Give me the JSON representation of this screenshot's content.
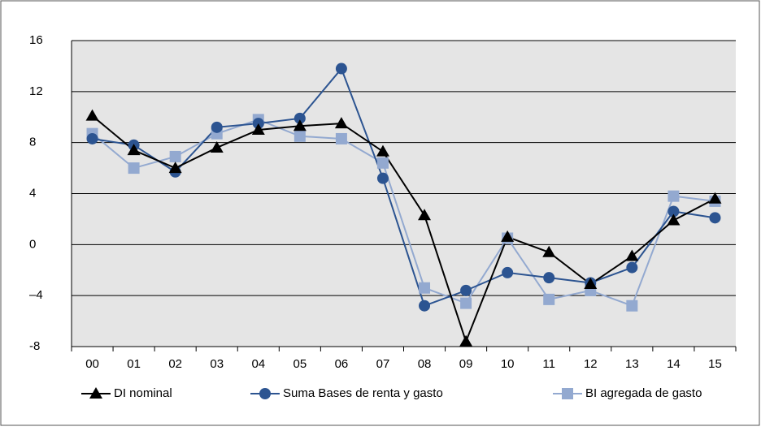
{
  "chart_data": {
    "type": "line",
    "categories": [
      "00",
      "01",
      "02",
      "03",
      "04",
      "05",
      "06",
      "07",
      "08",
      "09",
      "10",
      "11",
      "12",
      "13",
      "14",
      "15"
    ],
    "ylim": [
      -8,
      16
    ],
    "yticks": [
      -8,
      {
        "value": -4,
        "label": "–4"
      },
      0,
      4,
      8,
      12,
      16
    ],
    "grid": true,
    "series": [
      {
        "name": "DI nominal",
        "color": "#000000",
        "marker": "triangle",
        "values": [
          10.1,
          7.4,
          6.0,
          7.6,
          9.0,
          9.3,
          9.5,
          7.3,
          2.3,
          -7.6,
          0.6,
          -0.6,
          -3.1,
          -0.9,
          1.9,
          3.6
        ]
      },
      {
        "name": "Suma Bases de renta y gasto",
        "color": "#2c5491",
        "marker": "circle",
        "values": [
          8.3,
          7.8,
          5.7,
          9.2,
          9.5,
          9.9,
          13.8,
          5.2,
          -4.8,
          -3.6,
          -2.2,
          -2.6,
          -3.0,
          -1.8,
          2.6,
          2.1
        ]
      },
      {
        "name": "BI agregada de gasto",
        "color": "#93a9d0",
        "marker": "square",
        "values": [
          8.7,
          6.0,
          6.9,
          8.7,
          9.8,
          8.5,
          8.3,
          6.4,
          -3.4,
          -4.6,
          0.5,
          -4.3,
          -3.6,
          -4.8,
          3.8,
          3.4
        ]
      }
    ],
    "legend": "bottom"
  }
}
